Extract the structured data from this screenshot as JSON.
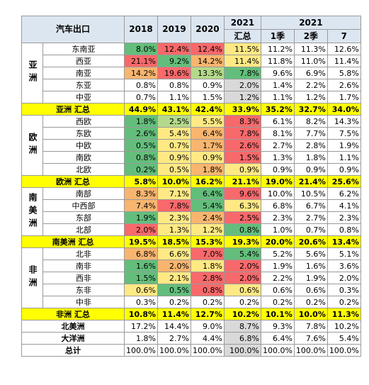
{
  "header": {
    "title": "汽车出口",
    "years": [
      "2018",
      "2019",
      "2020"
    ],
    "ytd_year": "2021",
    "ytd_label": "汇总",
    "period_year": "2021",
    "periods": [
      "1季",
      "2季",
      "7"
    ]
  },
  "groups": [
    {
      "name": "亚洲",
      "rows": [
        {
          "name": "东南亚",
          "values": [
            "8.0%",
            "12.4%",
            "12.4%",
            "11.5%",
            "11.2%",
            "11.3%",
            "12.6%"
          ]
        },
        {
          "name": "西亚",
          "values": [
            "21.1%",
            "9.2%",
            "14.2%",
            "11.4%",
            "11.8%",
            "11.0%",
            "11.4%"
          ]
        },
        {
          "name": "南亚",
          "values": [
            "14.2%",
            "19.6%",
            "13.3%",
            "7.8%",
            "9.6%",
            "6.9%",
            "5.8%"
          ]
        },
        {
          "name": "东亚",
          "values": [
            "0.8%",
            "0.8%",
            "0.9%",
            "2.0%",
            "1.4%",
            "2.2%",
            "2.6%"
          ]
        },
        {
          "name": "中亚",
          "values": [
            "0.7%",
            "1.1%",
            "1.5%",
            "1.2%",
            "1.1%",
            "1.2%",
            "1.7%"
          ]
        }
      ],
      "total": {
        "name": "亚洲 汇总",
        "values": [
          "44.9%",
          "43.1%",
          "42.4%",
          "33.9%",
          "35.2%",
          "32.7%",
          "34.0%"
        ]
      }
    },
    {
      "name": "欧洲",
      "rows": [
        {
          "name": "西欧",
          "values": [
            "1.8%",
            "2.5%",
            "5.5%",
            "8.3%",
            "6.1%",
            "8.2%",
            "14.3%"
          ]
        },
        {
          "name": "东欧",
          "values": [
            "2.6%",
            "5.4%",
            "6.4%",
            "7.8%",
            "8.1%",
            "7.7%",
            "7.5%"
          ]
        },
        {
          "name": "中欧",
          "values": [
            "0.5%",
            "0.7%",
            "1.7%",
            "2.6%",
            "2.7%",
            "2.8%",
            "1.9%"
          ]
        },
        {
          "name": "南欧",
          "values": [
            "0.8%",
            "0.9%",
            "0.9%",
            "1.5%",
            "1.3%",
            "1.8%",
            "1.1%"
          ]
        },
        {
          "name": "北欧",
          "values": [
            "0.2%",
            "0.5%",
            "1.8%",
            "0.9%",
            "0.9%",
            "0.9%",
            "0.9%"
          ]
        }
      ],
      "total": {
        "name": "欧洲 汇总",
        "values": [
          "5.8%",
          "10.0%",
          "16.2%",
          "21.1%",
          "19.0%",
          "21.4%",
          "25.6%"
        ]
      }
    },
    {
      "name": "南美洲",
      "rows": [
        {
          "name": "南部",
          "values": [
            "8.3%",
            "7.1%",
            "6.4%",
            "9.6%",
            "10.0%",
            "10.5%",
            "6.2%"
          ]
        },
        {
          "name": "中西部",
          "values": [
            "7.4%",
            "7.8%",
            "5.4%",
            "6.3%",
            "6.8%",
            "6.7%",
            "4.1%"
          ]
        },
        {
          "name": "东部",
          "values": [
            "1.9%",
            "2.3%",
            "2.4%",
            "2.5%",
            "2.3%",
            "2.7%",
            "2.3%"
          ]
        },
        {
          "name": "北部",
          "values": [
            "2.0%",
            "1.3%",
            "1.2%",
            "0.8%",
            "1.0%",
            "0.7%",
            "0.8%"
          ]
        }
      ],
      "total": {
        "name": "南美洲 汇总",
        "values": [
          "19.5%",
          "18.5%",
          "15.3%",
          "19.3%",
          "20.0%",
          "20.6%",
          "13.4%"
        ]
      }
    },
    {
      "name": "非洲",
      "rows": [
        {
          "name": "北非",
          "values": [
            "6.8%",
            "6.6%",
            "7.0%",
            "5.4%",
            "5.2%",
            "5.6%",
            "5.1%"
          ]
        },
        {
          "name": "南非",
          "values": [
            "1.6%",
            "2.0%",
            "1.8%",
            "2.0%",
            "1.9%",
            "1.6%",
            "3.6%"
          ]
        },
        {
          "name": "西非",
          "values": [
            "1.5%",
            "2.1%",
            "2.8%",
            "2.0%",
            "2.2%",
            "1.9%",
            "2.0%"
          ]
        },
        {
          "name": "东非",
          "values": [
            "0.6%",
            "0.5%",
            "0.8%",
            "0.6%",
            "0.6%",
            "0.6%",
            "0.3%"
          ]
        },
        {
          "name": "中非",
          "values": [
            "0.3%",
            "0.2%",
            "0.2%",
            "0.2%",
            "0.2%",
            "0.2%",
            "0.2%"
          ]
        }
      ],
      "total": {
        "name": "非洲 汇总",
        "values": [
          "10.8%",
          "11.4%",
          "12.7%",
          "10.2%",
          "10.1%",
          "10.0%",
          "11.3%"
        ]
      }
    }
  ],
  "others": [
    {
      "name": "北美洲",
      "values": [
        "17.2%",
        "14.4%",
        "9.0%",
        "8.7%",
        "9.3%",
        "7.8%",
        "10.2%"
      ]
    },
    {
      "name": "大洋洲",
      "values": [
        "1.8%",
        "2.7%",
        "4.4%",
        "6.8%",
        "6.4%",
        "7.6%",
        "5.4%"
      ]
    }
  ],
  "grand_total": {
    "name": "总计",
    "values": [
      "100.0%",
      "100.0%",
      "100.0%",
      "100.0%",
      "100.0%",
      "100.0%",
      "100.0%"
    ]
  }
}
